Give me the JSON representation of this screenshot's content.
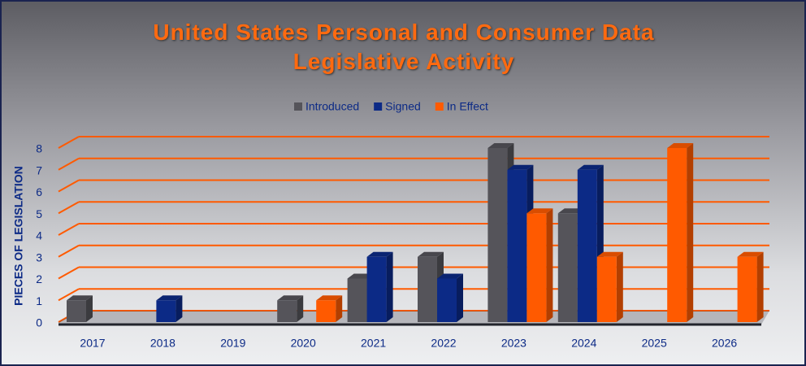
{
  "chart_data": {
    "type": "bar3d",
    "title": "United States Personal and Consumer Data Legislative Activity",
    "y_label": "PIECES OF LEGISLATION",
    "categories": [
      "2017",
      "2018",
      "2019",
      "2020",
      "2021",
      "2022",
      "2023",
      "2024",
      "2025",
      "2026"
    ],
    "series": [
      {
        "name": "Introduced",
        "color": "#55545a",
        "values": [
          1,
          0,
          0,
          1,
          2,
          3,
          8,
          5,
          0,
          0
        ]
      },
      {
        "name": "Signed",
        "color": "#0c2a86",
        "values": [
          0,
          1,
          0,
          0,
          3,
          2,
          7,
          7,
          0,
          0
        ]
      },
      {
        "name": "In Effect",
        "color": "#ff5a00",
        "values": [
          0,
          0,
          0,
          1,
          0,
          0,
          5,
          3,
          8,
          3
        ]
      }
    ],
    "ylim": [
      0,
      8
    ],
    "yticks": [
      0,
      1,
      2,
      3,
      4,
      5,
      6,
      7,
      8
    ],
    "grid": true,
    "grid_color": "#ff5a00",
    "legend": "top"
  }
}
